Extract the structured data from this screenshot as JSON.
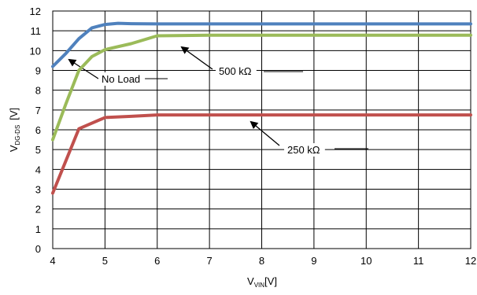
{
  "chart_data": {
    "type": "line",
    "xlabel": {
      "main": "V",
      "sub": "VIN",
      "unit": "[V]"
    },
    "ylabel": {
      "main": "V",
      "sub": "DG-DS",
      "unit": "[V]"
    },
    "xlim": [
      4,
      12
    ],
    "ylim": [
      0,
      12
    ],
    "xticks": [
      "4",
      "5",
      "6",
      "7",
      "8",
      "9",
      "10",
      "11",
      "12"
    ],
    "yticks": [
      "0",
      "1",
      "2",
      "3",
      "4",
      "5",
      "6",
      "7",
      "8",
      "9",
      "10",
      "11",
      "12"
    ],
    "grid": true,
    "series": [
      {
        "name": "No Load",
        "color": "#4f81bd",
        "x": [
          4,
          4.25,
          4.5,
          4.75,
          5,
          5.25,
          5.5,
          6,
          7,
          8,
          9,
          10,
          11,
          12
        ],
        "y": [
          9.2,
          9.85,
          10.6,
          11.15,
          11.32,
          11.38,
          11.36,
          11.35,
          11.35,
          11.35,
          11.35,
          11.35,
          11.35,
          11.35
        ]
      },
      {
        "name": "500 kΩ",
        "color": "#9bbb59",
        "x": [
          4,
          4.25,
          4.5,
          4.75,
          5,
          5.5,
          6,
          7,
          8,
          9,
          10,
          11,
          12
        ],
        "y": [
          5.5,
          7.3,
          9.0,
          9.7,
          10.05,
          10.35,
          10.75,
          10.78,
          10.78,
          10.78,
          10.78,
          10.78,
          10.78
        ]
      },
      {
        "name": "250 kΩ",
        "color": "#c0504d",
        "x": [
          4,
          4.5,
          5,
          5.5,
          6,
          7,
          8,
          9,
          10,
          11,
          12
        ],
        "y": [
          2.8,
          6.05,
          6.62,
          6.68,
          6.75,
          6.75,
          6.75,
          6.75,
          6.75,
          6.75,
          6.75
        ]
      }
    ],
    "annotations": [
      {
        "text": "No Load",
        "series": 0
      },
      {
        "text": "500 kΩ",
        "series": 1
      },
      {
        "text": "250 kΩ",
        "series": 2
      }
    ]
  }
}
